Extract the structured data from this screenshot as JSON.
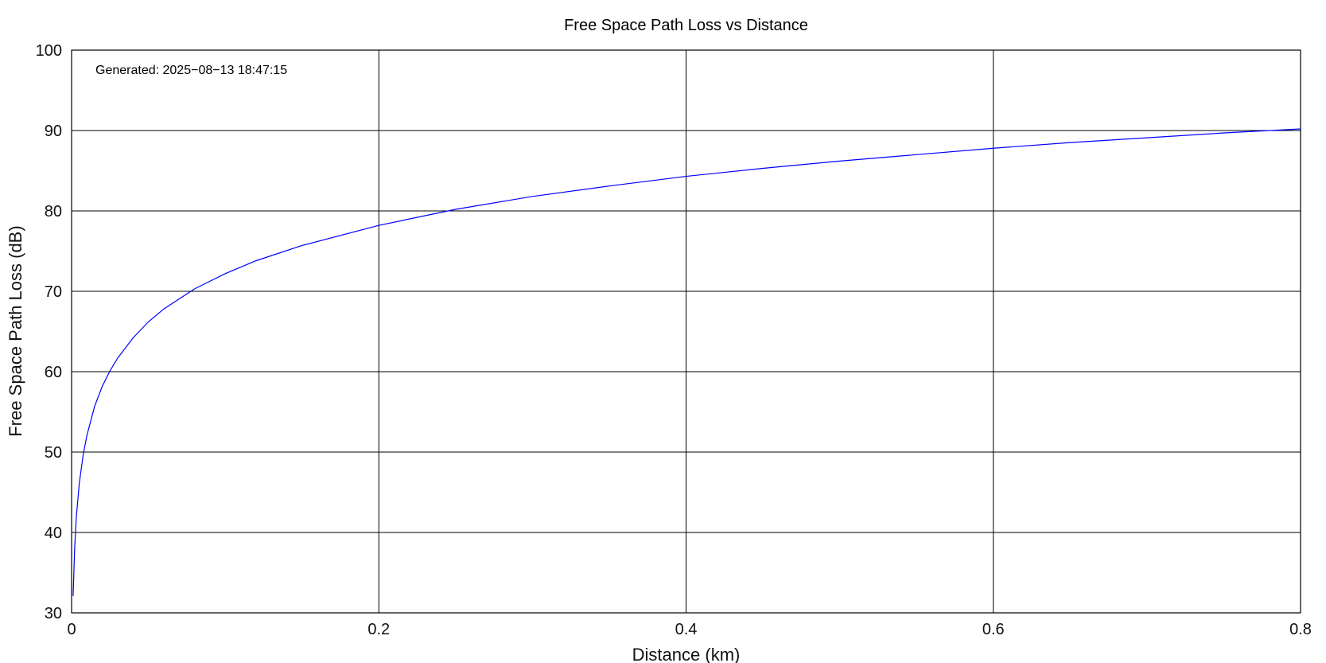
{
  "chart_data": {
    "type": "line",
    "title": "Free Space Path Loss vs Distance",
    "xlabel": "Distance (km)",
    "ylabel": "Free Space Path Loss (dB)",
    "xlim": [
      0,
      0.8
    ],
    "ylim": [
      30,
      100
    ],
    "xticks": [
      0,
      0.2,
      0.4,
      0.6,
      0.8
    ],
    "xtick_labels": [
      "0",
      "0.2",
      "0.4",
      "0.6",
      "0.8"
    ],
    "yticks": [
      30,
      40,
      50,
      60,
      70,
      80,
      90,
      100
    ],
    "ytick_labels": [
      "30",
      "40",
      "50",
      "60",
      "70",
      "80",
      "90",
      "100"
    ],
    "grid": true,
    "annotation": "Generated: 2025−08−13 18:47:15",
    "series_color": "#0000ff",
    "series": [
      {
        "x": [
          0.001,
          0.002,
          0.003,
          0.005,
          0.0075,
          0.01,
          0.015,
          0.02,
          0.025,
          0.03,
          0.04,
          0.05,
          0.06,
          0.08,
          0.1,
          0.12,
          0.15,
          0.2,
          0.25,
          0.3,
          0.35,
          0.4,
          0.45,
          0.5,
          0.55,
          0.6,
          0.65,
          0.7,
          0.75,
          0.8
        ],
        "y": [
          32.1,
          38.1,
          41.7,
          46.1,
          49.6,
          52.1,
          55.7,
          58.2,
          60.1,
          61.7,
          64.2,
          66.2,
          67.8,
          70.3,
          72.2,
          73.8,
          75.7,
          78.2,
          80.2,
          81.8,
          83.1,
          84.3,
          85.3,
          86.2,
          87.0,
          87.8,
          88.5,
          89.1,
          89.7,
          90.2
        ]
      }
    ]
  }
}
